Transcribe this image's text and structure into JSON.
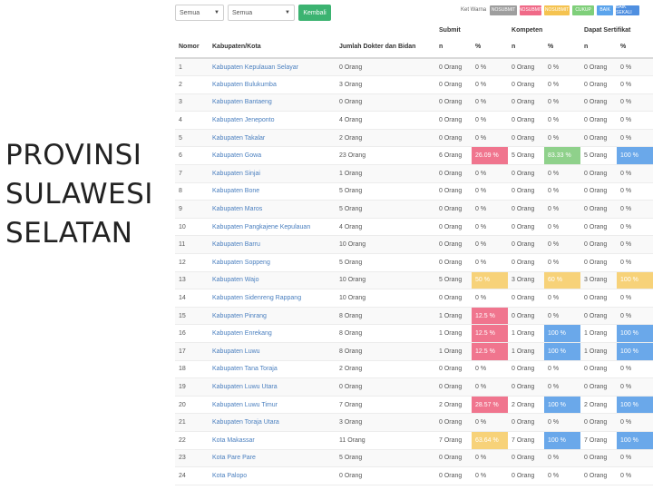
{
  "side_title": [
    "PROVINSI",
    "SULAWESI",
    "SELATAN"
  ],
  "toolbar": {
    "filter1": "Semua",
    "filter2": "Semua",
    "back_button": "Kembali"
  },
  "legend": {
    "label": "Ket Warna",
    "items": [
      {
        "label": "NOSUBMIT",
        "color": "#9e9e9e"
      },
      {
        "label": "NOSUBMIT",
        "color": "#f06a88"
      },
      {
        "label": "NOSUBMIT",
        "color": "#f5c350"
      },
      {
        "label": "CUKUP",
        "color": "#7fcf7a"
      },
      {
        "label": "BAIK",
        "color": "#5ba4ec"
      },
      {
        "label": "BAIK SEKALI",
        "color": "#4f8fe0"
      }
    ]
  },
  "table": {
    "group_headers": {
      "submit": "Submit",
      "kompeten": "Kompeten",
      "sertifikat": "Dapat Sertifikat"
    },
    "columns": [
      "Nomor",
      "Kabupaten/Kota",
      "Jumlah Dokter dan Bidan",
      "n",
      "%",
      "n",
      "%",
      "n",
      "%"
    ],
    "rows": [
      {
        "no": "1",
        "kab": "Kabupaten Kepulauan Selayar",
        "jml": "0 Orang",
        "sn": "0 Orang",
        "sp": "0 %",
        "kn": "0 Orang",
        "kp": "0 %",
        "dn": "0 Orang",
        "dp": "0 %",
        "sc": "",
        "kc": "",
        "dc": ""
      },
      {
        "no": "2",
        "kab": "Kabupaten Bulukumba",
        "jml": "3 Orang",
        "sn": "0 Orang",
        "sp": "0 %",
        "kn": "0 Orang",
        "kp": "0 %",
        "dn": "0 Orang",
        "dp": "0 %",
        "sc": "",
        "kc": "",
        "dc": ""
      },
      {
        "no": "3",
        "kab": "Kabupaten Bantaeng",
        "jml": "0 Orang",
        "sn": "0 Orang",
        "sp": "0 %",
        "kn": "0 Orang",
        "kp": "0 %",
        "dn": "0 Orang",
        "dp": "0 %",
        "sc": "",
        "kc": "",
        "dc": ""
      },
      {
        "no": "4",
        "kab": "Kabupaten Jeneponto",
        "jml": "4 Orang",
        "sn": "0 Orang",
        "sp": "0 %",
        "kn": "0 Orang",
        "kp": "0 %",
        "dn": "0 Orang",
        "dp": "0 %",
        "sc": "",
        "kc": "",
        "dc": ""
      },
      {
        "no": "5",
        "kab": "Kabupaten Takalar",
        "jml": "2 Orang",
        "sn": "0 Orang",
        "sp": "0 %",
        "kn": "0 Orang",
        "kp": "0 %",
        "dn": "0 Orang",
        "dp": "0 %",
        "sc": "",
        "kc": "",
        "dc": ""
      },
      {
        "no": "6",
        "kab": "Kabupaten Gowa",
        "jml": "23 Orang",
        "sn": "6 Orang",
        "sp": "26.09 %",
        "kn": "5 Orang",
        "kp": "83.33 %",
        "dn": "5 Orang",
        "dp": "100 %",
        "sc": "red",
        "kc": "green",
        "dc": "blue"
      },
      {
        "no": "7",
        "kab": "Kabupaten Sinjai",
        "jml": "1 Orang",
        "sn": "0 Orang",
        "sp": "0 %",
        "kn": "0 Orang",
        "kp": "0 %",
        "dn": "0 Orang",
        "dp": "0 %",
        "sc": "",
        "kc": "",
        "dc": ""
      },
      {
        "no": "8",
        "kab": "Kabupaten Bone",
        "jml": "5 Orang",
        "sn": "0 Orang",
        "sp": "0 %",
        "kn": "0 Orang",
        "kp": "0 %",
        "dn": "0 Orang",
        "dp": "0 %",
        "sc": "",
        "kc": "",
        "dc": ""
      },
      {
        "no": "9",
        "kab": "Kabupaten Maros",
        "jml": "5 Orang",
        "sn": "0 Orang",
        "sp": "0 %",
        "kn": "0 Orang",
        "kp": "0 %",
        "dn": "0 Orang",
        "dp": "0 %",
        "sc": "",
        "kc": "",
        "dc": ""
      },
      {
        "no": "10",
        "kab": "Kabupaten Pangkajene Kepulauan",
        "jml": "4 Orang",
        "sn": "0 Orang",
        "sp": "0 %",
        "kn": "0 Orang",
        "kp": "0 %",
        "dn": "0 Orang",
        "dp": "0 %",
        "sc": "",
        "kc": "",
        "dc": ""
      },
      {
        "no": "11",
        "kab": "Kabupaten Barru",
        "jml": "10 Orang",
        "sn": "0 Orang",
        "sp": "0 %",
        "kn": "0 Orang",
        "kp": "0 %",
        "dn": "0 Orang",
        "dp": "0 %",
        "sc": "",
        "kc": "",
        "dc": ""
      },
      {
        "no": "12",
        "kab": "Kabupaten Soppeng",
        "jml": "5 Orang",
        "sn": "0 Orang",
        "sp": "0 %",
        "kn": "0 Orang",
        "kp": "0 %",
        "dn": "0 Orang",
        "dp": "0 %",
        "sc": "",
        "kc": "",
        "dc": ""
      },
      {
        "no": "13",
        "kab": "Kabupaten Wajo",
        "jml": "10 Orang",
        "sn": "5 Orang",
        "sp": "50 %",
        "kn": "3 Orang",
        "kp": "60 %",
        "dn": "3 Orang",
        "dp": "100 %",
        "sc": "yellow",
        "kc": "yellow",
        "dc": "yellow"
      },
      {
        "no": "14",
        "kab": "Kabupaten Sidenreng Rappang",
        "jml": "10 Orang",
        "sn": "0 Orang",
        "sp": "0 %",
        "kn": "0 Orang",
        "kp": "0 %",
        "dn": "0 Orang",
        "dp": "0 %",
        "sc": "",
        "kc": "",
        "dc": ""
      },
      {
        "no": "15",
        "kab": "Kabupaten Pinrang",
        "jml": "8 Orang",
        "sn": "1 Orang",
        "sp": "12.5 %",
        "kn": "0 Orang",
        "kp": "0 %",
        "dn": "0 Orang",
        "dp": "0 %",
        "sc": "red",
        "kc": "",
        "dc": ""
      },
      {
        "no": "16",
        "kab": "Kabupaten Enrekang",
        "jml": "8 Orang",
        "sn": "1 Orang",
        "sp": "12.5 %",
        "kn": "1 Orang",
        "kp": "100 %",
        "dn": "1 Orang",
        "dp": "100 %",
        "sc": "red",
        "kc": "blue",
        "dc": "blue"
      },
      {
        "no": "17",
        "kab": "Kabupaten Luwu",
        "jml": "8 Orang",
        "sn": "1 Orang",
        "sp": "12.5 %",
        "kn": "1 Orang",
        "kp": "100 %",
        "dn": "1 Orang",
        "dp": "100 %",
        "sc": "red",
        "kc": "blue",
        "dc": "blue"
      },
      {
        "no": "18",
        "kab": "Kabupaten Tana Toraja",
        "jml": "2 Orang",
        "sn": "0 Orang",
        "sp": "0 %",
        "kn": "0 Orang",
        "kp": "0 %",
        "dn": "0 Orang",
        "dp": "0 %",
        "sc": "",
        "kc": "",
        "dc": ""
      },
      {
        "no": "19",
        "kab": "Kabupaten Luwu Utara",
        "jml": "0 Orang",
        "sn": "0 Orang",
        "sp": "0 %",
        "kn": "0 Orang",
        "kp": "0 %",
        "dn": "0 Orang",
        "dp": "0 %",
        "sc": "",
        "kc": "",
        "dc": ""
      },
      {
        "no": "20",
        "kab": "Kabupaten Luwu Timur",
        "jml": "7 Orang",
        "sn": "2 Orang",
        "sp": "28.57 %",
        "kn": "2 Orang",
        "kp": "100 %",
        "dn": "2 Orang",
        "dp": "100 %",
        "sc": "red",
        "kc": "blue",
        "dc": "blue"
      },
      {
        "no": "21",
        "kab": "Kabupaten Toraja Utara",
        "jml": "3 Orang",
        "sn": "0 Orang",
        "sp": "0 %",
        "kn": "0 Orang",
        "kp": "0 %",
        "dn": "0 Orang",
        "dp": "0 %",
        "sc": "",
        "kc": "",
        "dc": ""
      },
      {
        "no": "22",
        "kab": "Kota Makassar",
        "jml": "11 Orang",
        "sn": "7 Orang",
        "sp": "63.64 %",
        "kn": "7 Orang",
        "kp": "100 %",
        "dn": "7 Orang",
        "dp": "100 %",
        "sc": "yellow",
        "kc": "blue",
        "dc": "blue"
      },
      {
        "no": "23",
        "kab": "Kota Pare Pare",
        "jml": "5 Orang",
        "sn": "0 Orang",
        "sp": "0 %",
        "kn": "0 Orang",
        "kp": "0 %",
        "dn": "0 Orang",
        "dp": "0 %",
        "sc": "",
        "kc": "",
        "dc": ""
      },
      {
        "no": "24",
        "kab": "Kota Palopo",
        "jml": "0 Orang",
        "sn": "0 Orang",
        "sp": "0 %",
        "kn": "0 Orang",
        "kp": "0 %",
        "dn": "0 Orang",
        "dp": "0 %",
        "sc": "",
        "kc": "",
        "dc": ""
      }
    ]
  }
}
